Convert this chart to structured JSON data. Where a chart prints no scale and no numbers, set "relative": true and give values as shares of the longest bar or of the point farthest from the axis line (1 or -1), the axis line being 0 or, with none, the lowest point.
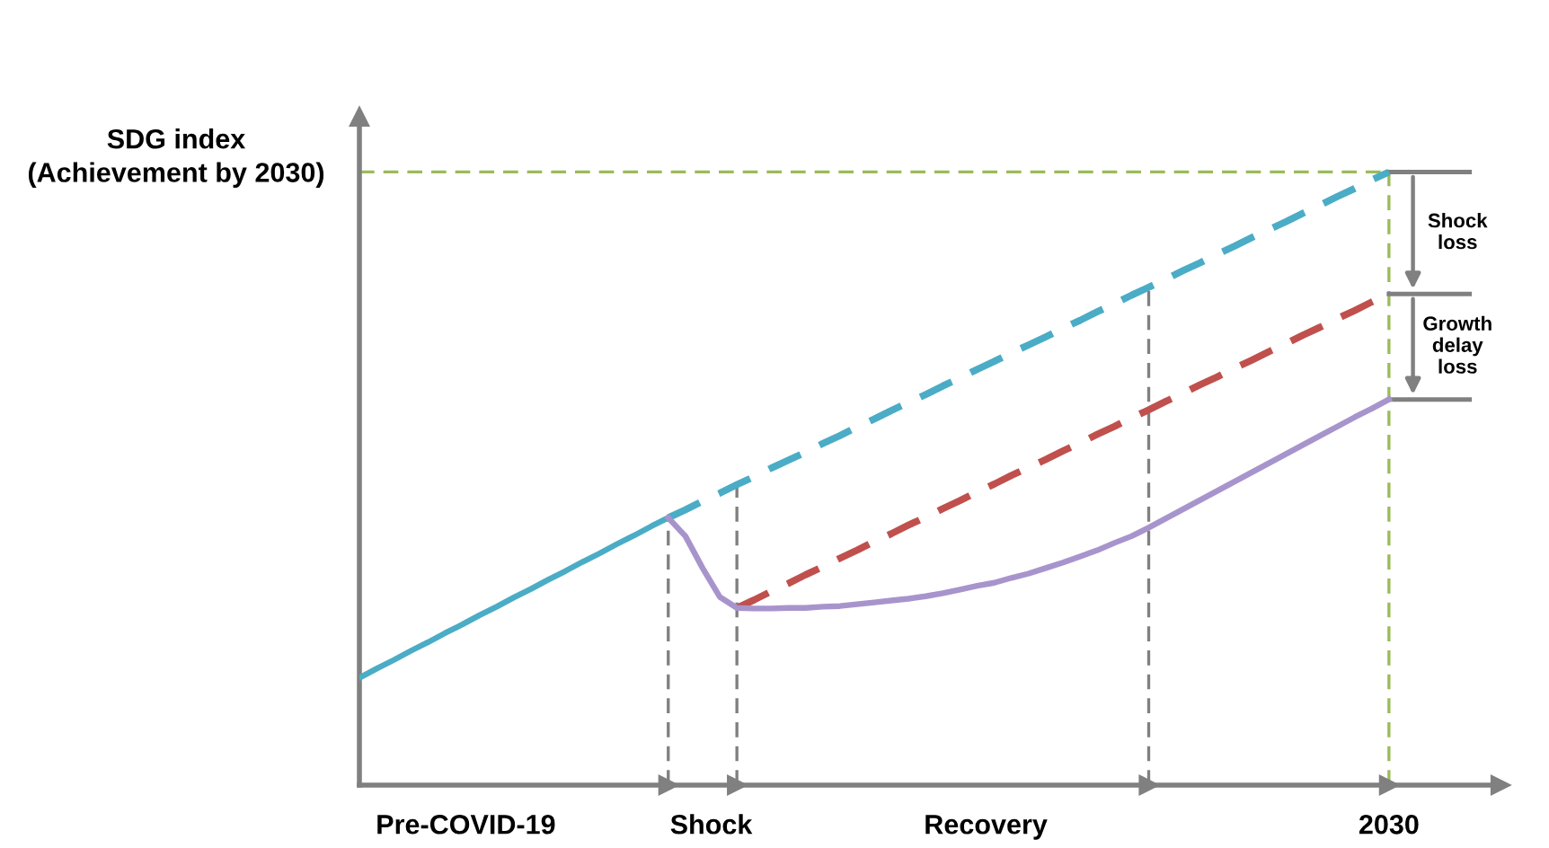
{
  "chart_data": {
    "type": "line",
    "relative": true,
    "ylabel": "SDG index\n(Achievement by 2030)",
    "categories": [
      null,
      null,
      null,
      null,
      null,
      null,
      null,
      null,
      null,
      null,
      null,
      null,
      null,
      null,
      null,
      null,
      null,
      null,
      null,
      null,
      null,
      null,
      null,
      null,
      null,
      null,
      null,
      null,
      null,
      null,
      null,
      null,
      null,
      null,
      null,
      null,
      null,
      null,
      null,
      null,
      null,
      null,
      null,
      null,
      null,
      null,
      null,
      null,
      null,
      null,
      null,
      null,
      null,
      null,
      null,
      null,
      null,
      null,
      null,
      null,
      null
    ],
    "series": [
      {
        "color": "#4bacc6",
        "line_style": "solid",
        "values": [
          0.175,
          0.19,
          0.204,
          0.219,
          0.233,
          0.248,
          0.262,
          0.277,
          0.291,
          0.306,
          0.32,
          0.335,
          0.349,
          0.364,
          0.378,
          0.393,
          0.407,
          0.422,
          0.436,
          null,
          null,
          null,
          null,
          null,
          null,
          null,
          null,
          null,
          null,
          null,
          null,
          null,
          null,
          null,
          null,
          null,
          null,
          null,
          null,
          null,
          null,
          null,
          null,
          null,
          null,
          null,
          null,
          null,
          null,
          null,
          null,
          null,
          null,
          null,
          null,
          null,
          null,
          null,
          null,
          null,
          null
        ]
      },
      {
        "color": "#4bacc6",
        "line_style": "dashed",
        "values": [
          null,
          null,
          null,
          null,
          null,
          null,
          null,
          null,
          null,
          null,
          null,
          null,
          null,
          null,
          null,
          null,
          null,
          null,
          0.436,
          0.449,
          0.463,
          0.476,
          0.49,
          0.503,
          0.517,
          0.53,
          0.543,
          0.557,
          0.57,
          0.584,
          0.597,
          0.611,
          0.624,
          0.637,
          0.651,
          0.664,
          0.678,
          0.691,
          0.705,
          0.718,
          0.731,
          0.745,
          0.758,
          0.772,
          0.785,
          0.799,
          0.812,
          0.825,
          0.839,
          0.852,
          0.866,
          0.879,
          0.893,
          0.906,
          0.919,
          0.933,
          0.946,
          0.96,
          0.973,
          0.987,
          1.0
        ]
      },
      {
        "color": "#c0504d",
        "line_style": "dashed",
        "values": [
          null,
          null,
          null,
          null,
          null,
          null,
          null,
          null,
          null,
          null,
          null,
          null,
          null,
          null,
          null,
          null,
          null,
          null,
          null,
          null,
          null,
          null,
          0.289,
          0.302,
          0.316,
          0.329,
          0.343,
          0.356,
          0.37,
          0.383,
          0.397,
          0.41,
          0.424,
          0.437,
          0.451,
          0.464,
          0.478,
          0.491,
          0.505,
          0.518,
          0.531,
          0.545,
          0.558,
          0.572,
          0.585,
          0.599,
          0.612,
          0.626,
          0.639,
          0.653,
          0.666,
          0.68,
          0.693,
          0.707,
          0.72,
          0.734,
          0.747,
          0.761,
          0.774,
          0.788,
          0.801
        ]
      },
      {
        "color": "#a894cc",
        "line_style": "solid",
        "values": [
          null,
          null,
          null,
          null,
          null,
          null,
          null,
          null,
          null,
          null,
          null,
          null,
          null,
          null,
          null,
          null,
          null,
          null,
          0.436,
          0.406,
          0.354,
          0.307,
          0.289,
          0.288,
          0.288,
          0.289,
          0.289,
          0.291,
          0.292,
          0.295,
          0.298,
          0.301,
          0.304,
          0.308,
          0.313,
          0.319,
          0.325,
          0.33,
          0.338,
          0.345,
          0.354,
          0.363,
          0.373,
          0.383,
          0.395,
          0.406,
          0.42,
          0.435,
          0.45,
          0.465,
          0.48,
          0.495,
          0.51,
          0.525,
          0.54,
          0.555,
          0.57,
          0.585,
          0.6,
          0.614,
          0.629
        ]
      }
    ],
    "ref_lines": [
      {
        "axis": "y",
        "value": 1.0,
        "color": "#9bbb59",
        "line_style": "dashed"
      }
    ],
    "annotations": [
      "Pre-COVID-19",
      "Shock",
      "Recovery",
      "2030",
      "Shock\nloss",
      "Growth\ndelay\nloss"
    ],
    "legend": false,
    "marker": "none"
  }
}
